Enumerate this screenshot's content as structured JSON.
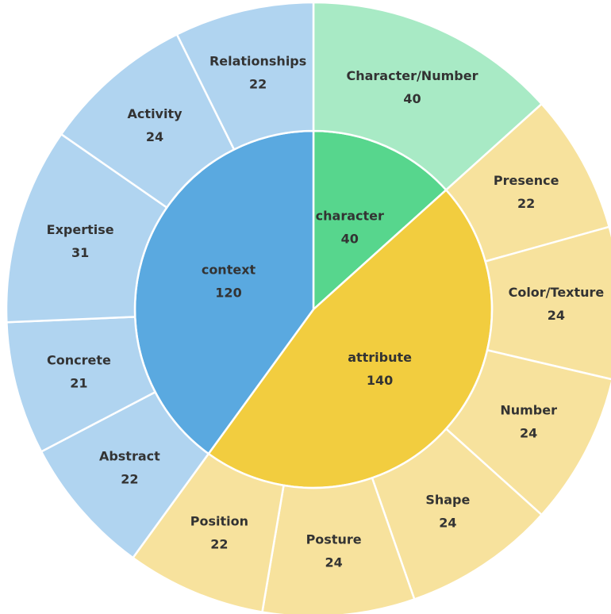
{
  "chart_data": {
    "type": "sunburst",
    "nodes": [
      {
        "name": "character",
        "value": 40,
        "color": "#57d68d",
        "children": [
          {
            "name": "Character/Number",
            "value": 40,
            "color": "#a8eac5"
          }
        ]
      },
      {
        "name": "attribute",
        "value": 140,
        "color": "#f2cd3f",
        "children": [
          {
            "name": "Presence",
            "value": 22,
            "color": "#f7e29d"
          },
          {
            "name": "Color/Texture",
            "value": 24,
            "color": "#f7e29d"
          },
          {
            "name": "Number",
            "value": 24,
            "color": "#f7e29d"
          },
          {
            "name": "Shape",
            "value": 24,
            "color": "#f7e29d"
          },
          {
            "name": "Posture",
            "value": 24,
            "color": "#f7e29d"
          },
          {
            "name": "Position",
            "value": 22,
            "color": "#f7e29d"
          }
        ]
      },
      {
        "name": "context",
        "value": 120,
        "color": "#5aa9e0",
        "children": [
          {
            "name": "Abstract",
            "value": 22,
            "color": "#b0d4f0"
          },
          {
            "name": "Concrete",
            "value": 21,
            "color": "#b0d4f0"
          },
          {
            "name": "Expertise",
            "value": 31,
            "color": "#b0d4f0"
          },
          {
            "name": "Activity",
            "value": 24,
            "color": "#b0d4f0"
          },
          {
            "name": "Relationships",
            "value": 22,
            "color": "#b0d4f0"
          }
        ]
      }
    ]
  }
}
